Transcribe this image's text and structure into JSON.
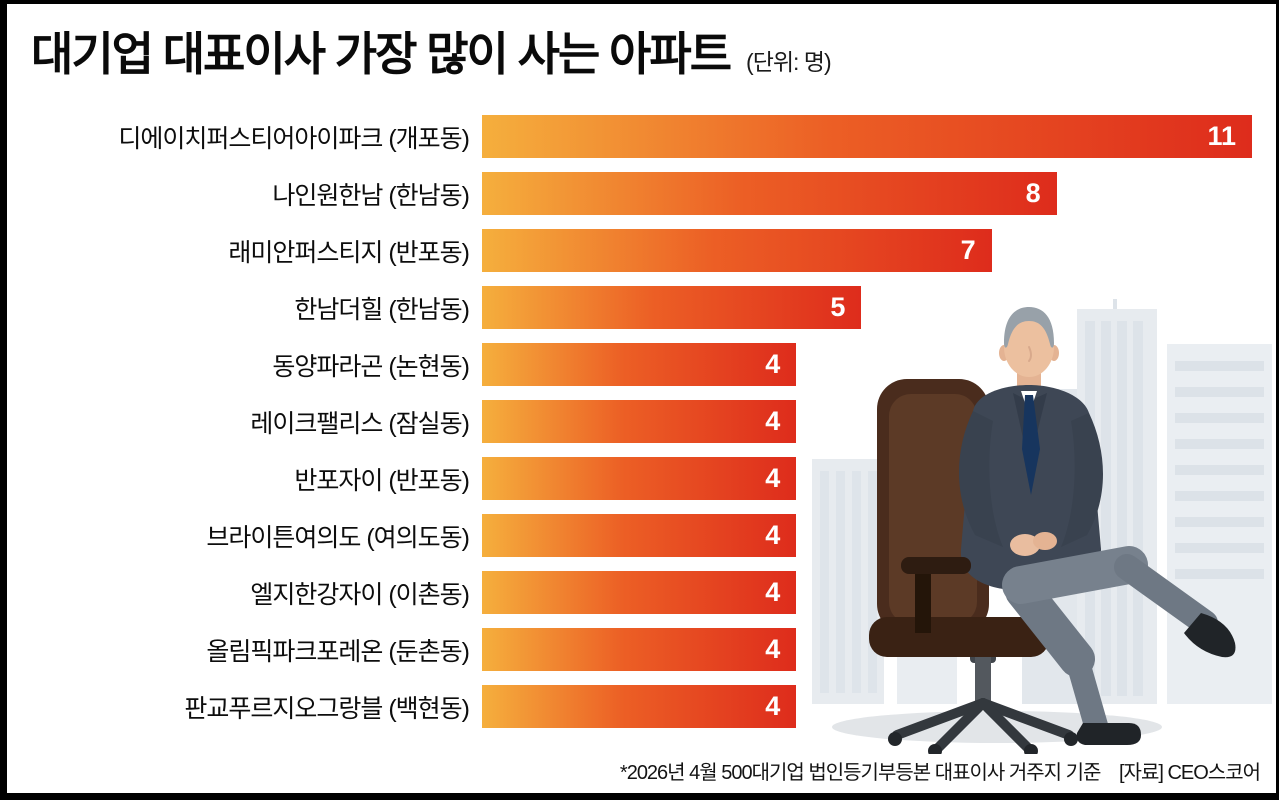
{
  "header": {
    "title": "대기업 대표이사 가장 많이 사는 아파트",
    "unit_label": "(단위: 명)"
  },
  "chart_data": {
    "type": "bar",
    "orientation": "horizontal",
    "title": "대기업 대표이사 가장 많이 사는 아파트",
    "unit": "명",
    "categories": [
      "디에이치퍼스티어아이파크 (개포동)",
      "나인원한남 (한남동)",
      "래미안퍼스티지 (반포동)",
      "한남더힐 (한남동)",
      "동양파라곤 (논현동)",
      "레이크팰리스 (잠실동)",
      "반포자이 (반포동)",
      "브라이튼여의도 (여의도동)",
      "엘지한강자이 (이촌동)",
      "올림픽파크포레온 (둔촌동)",
      "판교푸르지오그랑블 (백현동)"
    ],
    "values": [
      11,
      8,
      7,
      5,
      4,
      4,
      4,
      4,
      4,
      4,
      4
    ],
    "xlim": [
      0,
      11
    ],
    "legend": "none",
    "grid": false,
    "bar_gradient": [
      "#F5AF3D",
      "#EC5F25",
      "#DE2C1C"
    ],
    "value_text_color": "#FFFFFF"
  },
  "footnote": {
    "note": "*2026년 4월 500대기업 법인등기부등본 대표이사 거주지 기준",
    "source": "[자료] CEO스코어"
  },
  "colors": {
    "background": "#FFFFFF",
    "frame": "#000000",
    "title_text": "#0A0A0A",
    "label_text": "#0D0D0D"
  }
}
